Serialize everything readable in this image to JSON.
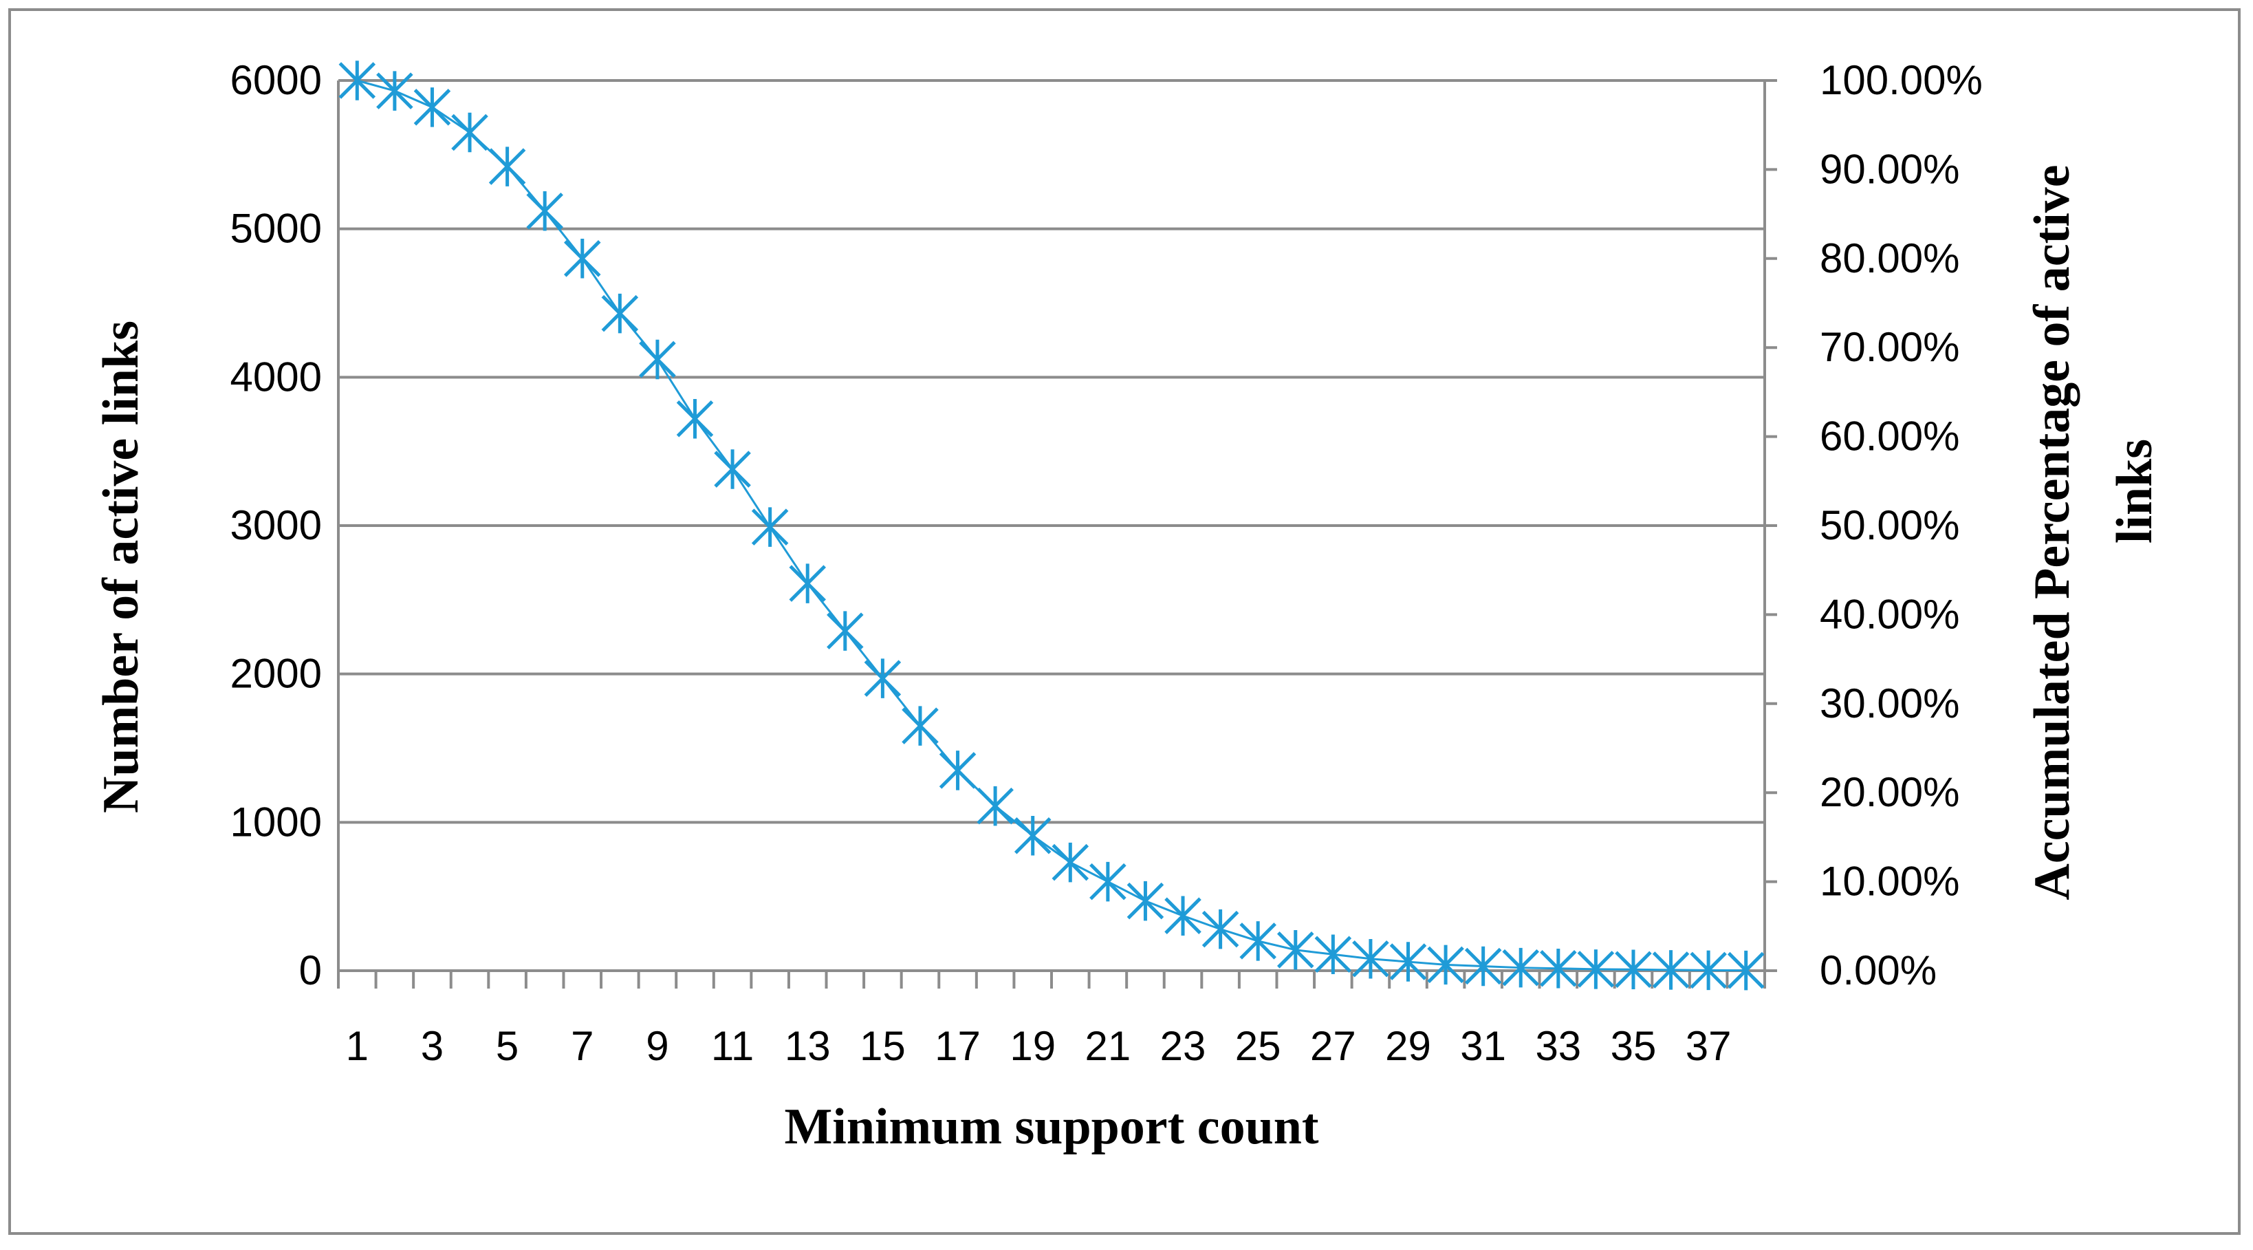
{
  "chart_data": {
    "type": "scatter",
    "title": "",
    "xlabel": "Minimum support count",
    "ylabel": "Number of active links",
    "y2label_line1": "Accumulated Percentage of active",
    "y2label_line2": "links",
    "xlim": [
      0.5,
      38.5
    ],
    "ylim": [
      0,
      6000
    ],
    "y2lim": [
      0,
      1
    ],
    "x_tick_labels": [
      "1",
      "3",
      "5",
      "7",
      "9",
      "11",
      "13",
      "15",
      "17",
      "19",
      "21",
      "23",
      "25",
      "27",
      "29",
      "31",
      "33",
      "35",
      "37"
    ],
    "y_tick_labels": [
      "0",
      "1000",
      "2000",
      "3000",
      "4000",
      "5000",
      "6000"
    ],
    "y2_tick_labels": [
      "0.00%",
      "10.00%",
      "20.00%",
      "30.00%",
      "40.00%",
      "50.00%",
      "60.00%",
      "70.00%",
      "80.00%",
      "90.00%",
      "100.00%"
    ],
    "grid": true,
    "legend": "none",
    "marker": "asterisk",
    "series_color": "#1F9BD7",
    "x": [
      1,
      2,
      3,
      4,
      5,
      6,
      7,
      8,
      9,
      10,
      11,
      12,
      13,
      14,
      15,
      16,
      17,
      18,
      19,
      20,
      21,
      22,
      23,
      24,
      25,
      26,
      27,
      28,
      29,
      30,
      31,
      32,
      33,
      34,
      35,
      36,
      37,
      38
    ],
    "values": [
      6000,
      5930,
      5820,
      5650,
      5420,
      5120,
      4800,
      4430,
      4120,
      3720,
      3380,
      2990,
      2610,
      2290,
      1970,
      1650,
      1350,
      1110,
      910,
      730,
      600,
      470,
      370,
      280,
      200,
      140,
      110,
      80,
      60,
      40,
      30,
      20,
      15,
      10,
      8,
      5,
      3,
      2
    ]
  }
}
